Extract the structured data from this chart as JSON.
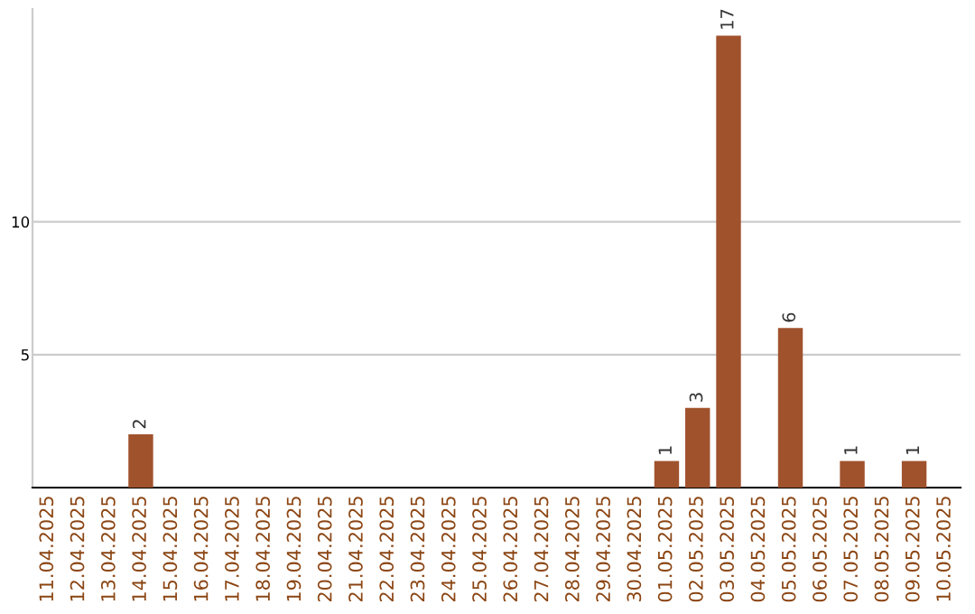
{
  "chart_data": {
    "type": "bar",
    "categories": [
      "11.04.2025",
      "12.04.2025",
      "13.04.2025",
      "14.04.2025",
      "15.04.2025",
      "16.04.2025",
      "17.04.2025",
      "18.04.2025",
      "19.04.2025",
      "20.04.2025",
      "21.04.2025",
      "22.04.2025",
      "23.04.2025",
      "24.04.2025",
      "25.04.2025",
      "26.04.2025",
      "27.04.2025",
      "28.04.2025",
      "29.04.2025",
      "30.04.2025",
      "01.05.2025",
      "02.05.2025",
      "03.05.2025",
      "04.05.2025",
      "05.05.2025",
      "06.05.2025",
      "07.05.2025",
      "08.05.2025",
      "09.05.2025",
      "10.05.2025"
    ],
    "values": [
      0,
      0,
      0,
      2,
      0,
      0,
      0,
      0,
      0,
      0,
      0,
      0,
      0,
      0,
      0,
      0,
      0,
      0,
      0,
      0,
      1,
      3,
      17,
      0,
      6,
      0,
      1,
      0,
      1,
      0
    ],
    "value_labels": [
      null,
      null,
      null,
      "2",
      null,
      null,
      null,
      null,
      null,
      null,
      null,
      null,
      null,
      null,
      null,
      null,
      null,
      null,
      null,
      null,
      "1",
      "3",
      "17",
      null,
      "6",
      null,
      "1",
      null,
      "1",
      null
    ],
    "color": "#a0522d",
    "ylim": [
      0,
      18
    ],
    "yticks": [
      5,
      10
    ],
    "grid": "y"
  }
}
